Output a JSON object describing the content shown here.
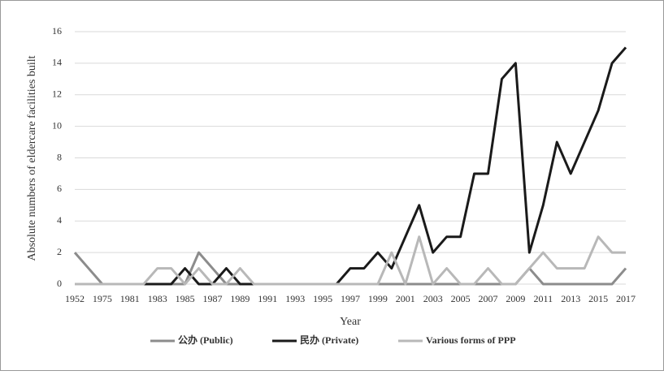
{
  "chart_data": {
    "type": "line",
    "xlabel": "Year",
    "ylabel": "Absolute numbers of eldercare facilities built",
    "categories": [
      "1952",
      null,
      "1975",
      null,
      "1981",
      null,
      "1983",
      null,
      "1985",
      null,
      "1987",
      null,
      "1989",
      null,
      "1991",
      null,
      "1993",
      null,
      "1995",
      null,
      "1997",
      null,
      "1999",
      null,
      "2001",
      null,
      "2003",
      null,
      "2005",
      null,
      "2007",
      null,
      "2009",
      null,
      "2011",
      null,
      "2013",
      null,
      "2015",
      null,
      "2017"
    ],
    "series": [
      {
        "name": "公办 (Public)",
        "color": "#8c8c8c",
        "values": [
          2,
          1,
          0,
          0,
          0,
          0,
          0,
          0,
          0,
          2,
          1,
          0,
          0,
          0,
          0,
          0,
          0,
          0,
          0,
          0,
          0,
          0,
          0,
          0,
          0,
          0,
          0,
          0,
          0,
          0,
          0,
          0,
          0,
          1,
          0,
          0,
          0,
          0,
          0,
          0,
          1
        ]
      },
      {
        "name": "民办 (Private)",
        "color": "#1a1a1a",
        "values": [
          0,
          0,
          0,
          0,
          0,
          0,
          0,
          0,
          1,
          0,
          0,
          1,
          0,
          0,
          0,
          0,
          0,
          0,
          0,
          0,
          1,
          1,
          2,
          1,
          3,
          5,
          2,
          3,
          3,
          7,
          7,
          13,
          14,
          2,
          5,
          9,
          7,
          9,
          11,
          14,
          15
        ]
      },
      {
        "name": "Various forms of PPP",
        "color": "#b8b8b8",
        "values": [
          0,
          0,
          0,
          0,
          0,
          0,
          1,
          1,
          0,
          1,
          0,
          0,
          1,
          0,
          0,
          0,
          0,
          0,
          0,
          0,
          0,
          0,
          0,
          2,
          0,
          3,
          0,
          1,
          0,
          0,
          1,
          0,
          0,
          1,
          2,
          1,
          1,
          1,
          3,
          2,
          2
        ]
      }
    ],
    "ylim": [
      0,
      16
    ],
    "yticks": [
      0,
      2,
      4,
      6,
      8,
      10,
      12,
      14,
      16
    ],
    "grid": true,
    "legend": "bottom"
  }
}
